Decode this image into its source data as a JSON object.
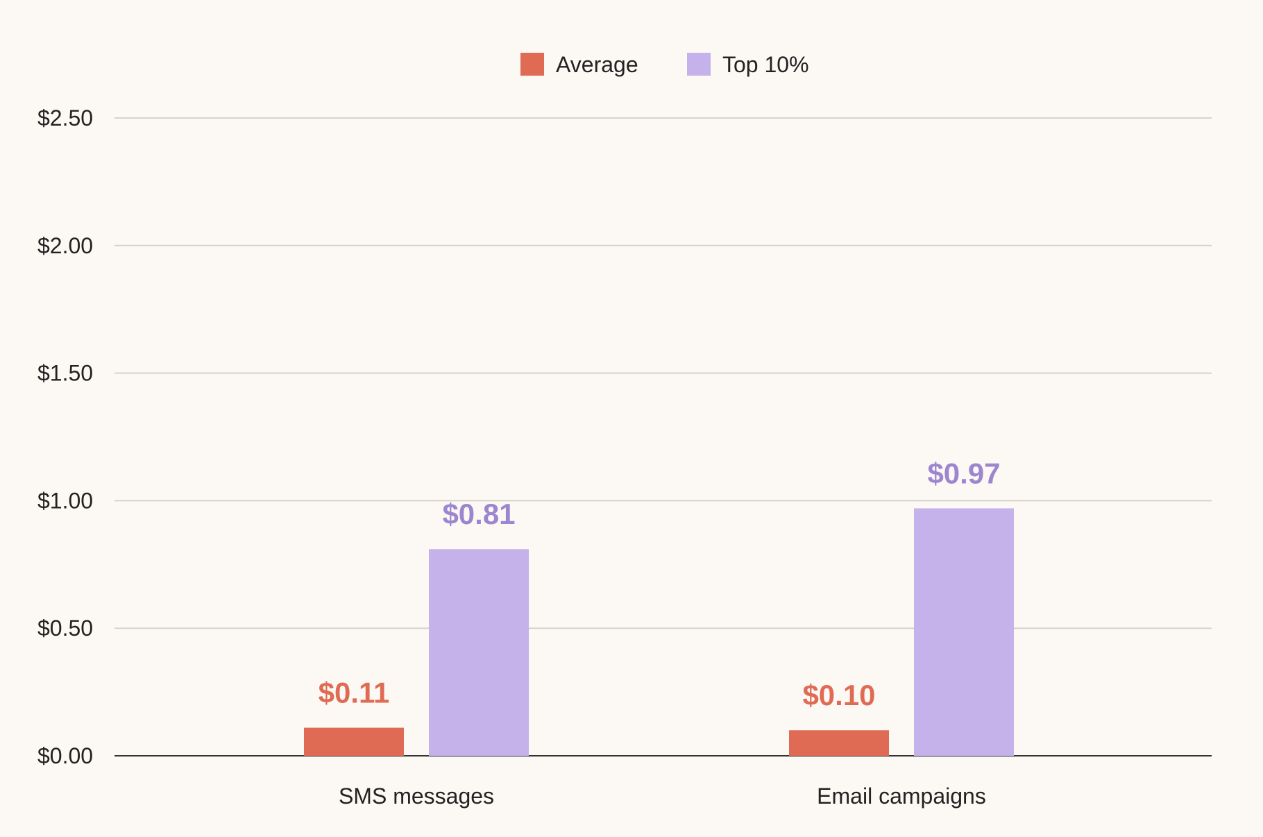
{
  "chart_data": {
    "type": "bar",
    "title": "",
    "xlabel": "",
    "ylabel": "",
    "categories": [
      "SMS messages",
      "Email campaigns"
    ],
    "series": [
      {
        "name": "Average",
        "values": [
          0.11,
          0.1
        ],
        "labels": [
          "$0.11",
          "$0.10"
        ],
        "color": "#e06b55",
        "label_color": "#e06b55"
      },
      {
        "name": "Top 10%",
        "values": [
          0.81,
          0.97
        ],
        "labels": [
          "$0.81",
          "$0.97"
        ],
        "color": "#c6b2ea",
        "label_color": "#9b86cf"
      }
    ],
    "ylim": [
      0,
      2.5
    ],
    "yticks": [
      0,
      0.5,
      1.0,
      1.5,
      2.0,
      2.5
    ],
    "ytick_labels": [
      "$0.00",
      "$0.50",
      "$1.00",
      "$1.50",
      "$2.00",
      "$2.50"
    ],
    "grid": true,
    "legend_position": "top-center"
  },
  "colors": {
    "background": "#fcf9f4",
    "gridline": "#d6d3cd",
    "baseline": "#333333",
    "text": "#222222"
  }
}
